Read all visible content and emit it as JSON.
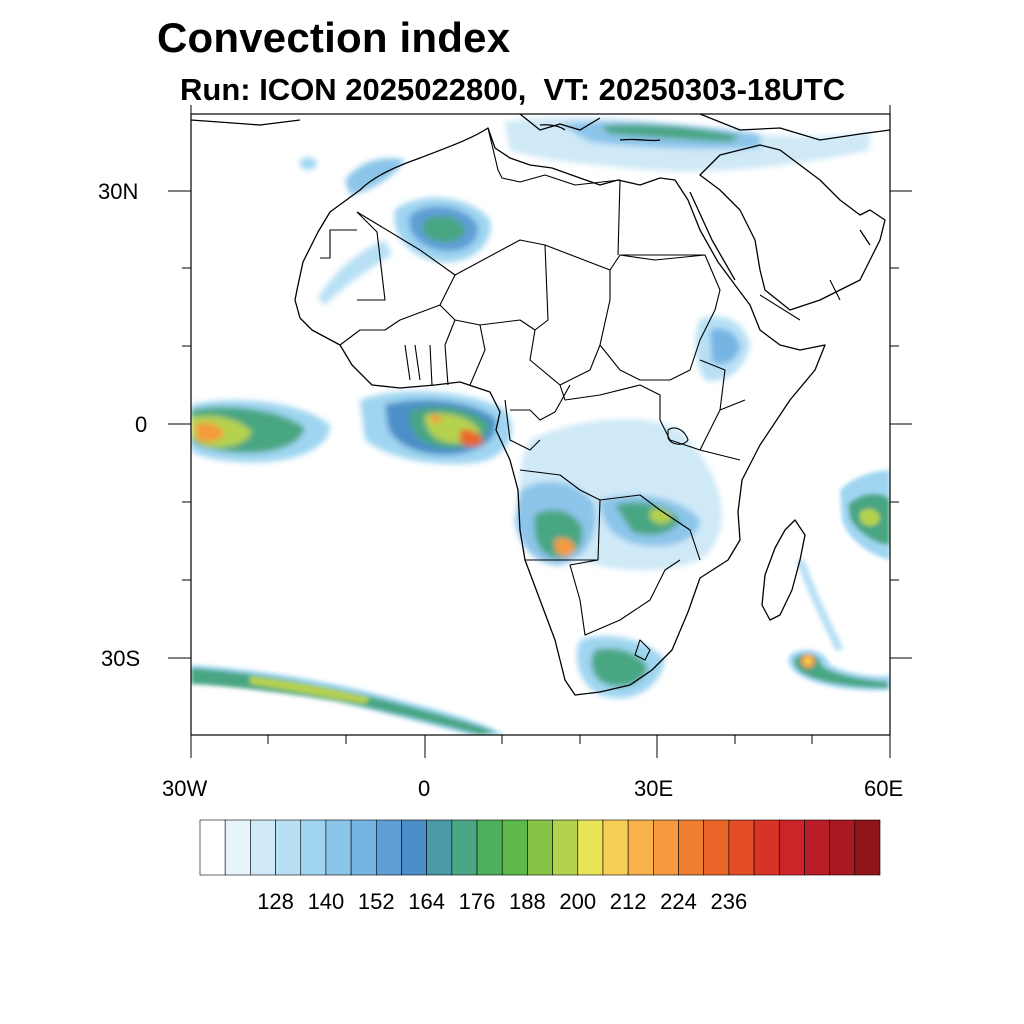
{
  "map": {
    "title": "Convection index",
    "subtitle": "Run: ICON 2025022800,  VT: 20250303-18UTC",
    "lat_ticks": [
      "30N",
      "0",
      "30S"
    ],
    "lon_ticks": [
      "30W",
      "0",
      "30E",
      "60E"
    ],
    "extent": {
      "lon": [
        -30,
        60
      ],
      "lat": [
        -40,
        40
      ]
    }
  },
  "colorbar": {
    "labels": [
      "128",
      "140",
      "152",
      "164",
      "176",
      "188",
      "200",
      "212",
      "224",
      "236"
    ],
    "colors": [
      "#ffffff",
      "#e8f4fb",
      "#cfe9f7",
      "#b8e0f5",
      "#9fd5f1",
      "#8cc5ea",
      "#76b4e2",
      "#5f9fd6",
      "#4c8fc8",
      "#4a9aa8",
      "#4aa683",
      "#4db05d",
      "#5cb94a",
      "#86c447",
      "#b5d24e",
      "#e8e357",
      "#f6ce53",
      "#f7b24a",
      "#f59a3e",
      "#f07f32",
      "#ea6529",
      "#e44c25",
      "#d93327",
      "#cc2429",
      "#bb1d27",
      "#a81922",
      "#8f151b"
    ]
  }
}
